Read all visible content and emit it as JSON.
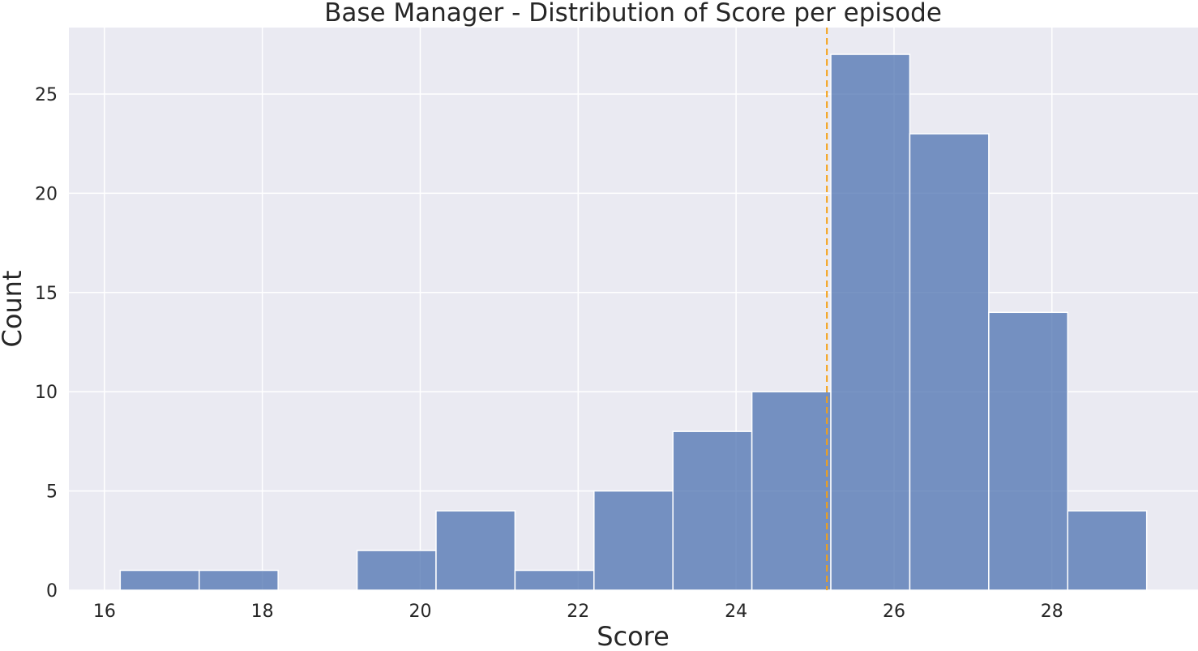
{
  "chart_data": {
    "type": "bar",
    "title": "Base Manager - Distribution of Score per episode",
    "xlabel": "Score",
    "ylabel": "Count",
    "xlim": [
      15.55,
      29.85
    ],
    "ylim": [
      0,
      28.35
    ],
    "xticks": [
      16,
      18,
      20,
      22,
      24,
      26,
      28
    ],
    "yticks": [
      0,
      5,
      10,
      15,
      20,
      25
    ],
    "grid": true,
    "bin_width": 1.0,
    "bins": [
      {
        "start": 16.2,
        "count": 1
      },
      {
        "start": 17.2,
        "count": 1
      },
      {
        "start": 18.2,
        "count": 0
      },
      {
        "start": 19.2,
        "count": 2
      },
      {
        "start": 20.2,
        "count": 4
      },
      {
        "start": 21.2,
        "count": 1
      },
      {
        "start": 22.2,
        "count": 5
      },
      {
        "start": 23.2,
        "count": 8
      },
      {
        "start": 24.2,
        "count": 10
      },
      {
        "start": 25.2,
        "count": 27
      },
      {
        "start": 26.2,
        "count": 23
      },
      {
        "start": 27.2,
        "count": 14
      },
      {
        "start": 28.2,
        "count": 4
      }
    ],
    "mean_line": {
      "x": 25.15,
      "style": "dashed"
    },
    "colors": {
      "bar_fill": "#4c72b0",
      "bar_edge": "#ffffff",
      "background": "#eaeaf2",
      "grid": "#ffffff",
      "mean_line": "#f5a015"
    }
  }
}
